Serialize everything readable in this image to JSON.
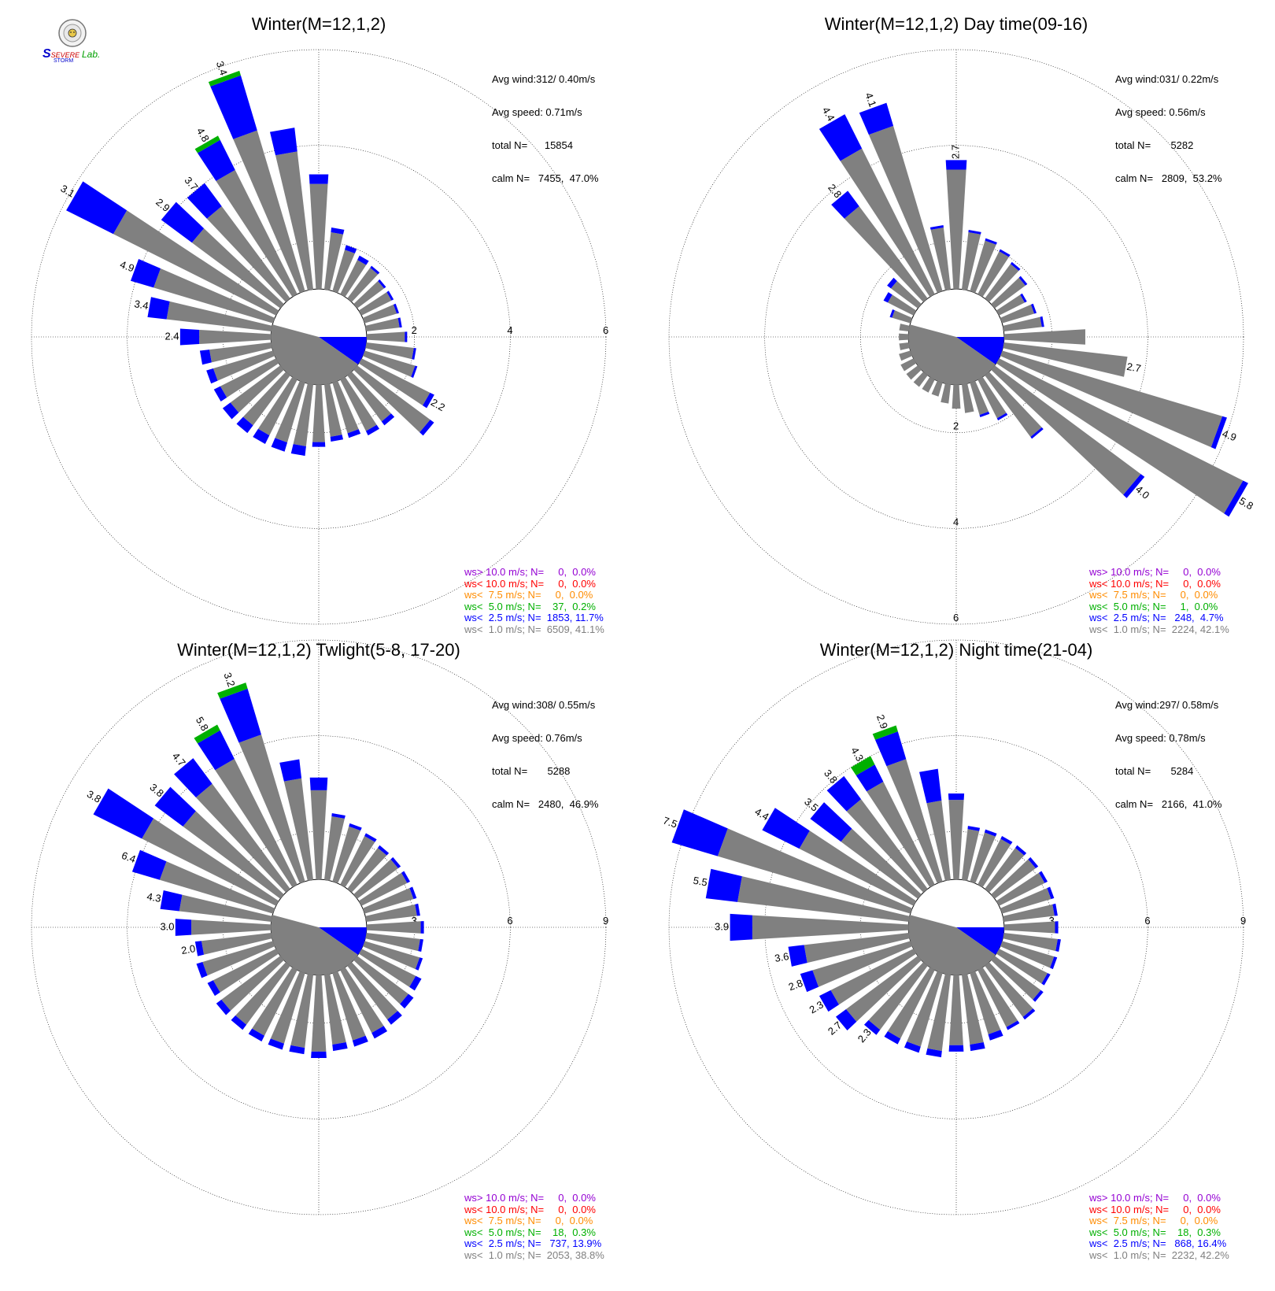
{
  "chart_data": [
    {
      "type": "windrose",
      "title": "Winter(M=12,1,2)",
      "rmax": 6,
      "ring_labels": [
        "2",
        "4",
        "6"
      ],
      "ring_label_direction_deg": 90,
      "calm_radius": 1,
      "stats": {
        "avg_wind": "Avg wind:312/ 0.40m/s",
        "avg_speed": "Avg speed: 0.71m/s",
        "total_n": "total N=      15854",
        "calm_n": "calm N=   7455,  47.0%"
      },
      "legend": [
        {
          "text": "ws> 10.0 m/s; N=     0,  0.0%",
          "color": "#9400D3"
        },
        {
          "text": "ws< 10.0 m/s; N=     0,  0.0%",
          "color": "#FF0000"
        },
        {
          "text": "ws<  7.5 m/s; N=     0,  0.0%",
          "color": "#FF8C00"
        },
        {
          "text": "ws<  5.0 m/s; N=    37,  0.2%",
          "color": "#00B000"
        },
        {
          "text": "ws<  2.5 m/s; N=  1853, 11.7%",
          "color": "#0000FF"
        },
        {
          "text": "ws<  1.0 m/s; N=  6509, 41.1%",
          "color": "#808080"
        }
      ],
      "directions_deg": [
        0,
        10,
        20,
        30,
        40,
        50,
        60,
        70,
        80,
        90,
        100,
        110,
        120,
        130,
        140,
        150,
        160,
        170,
        180,
        190,
        200,
        210,
        220,
        230,
        240,
        250,
        260,
        270,
        280,
        290,
        300,
        310,
        320,
        330,
        340,
        350
      ],
      "gray": [
        2.2,
        1.2,
        0.9,
        0.8,
        0.8,
        0.7,
        0.7,
        0.7,
        0.7,
        0.8,
        1.0,
        1.1,
        1.6,
        1.9,
        1.2,
        1.2,
        1.1,
        1.1,
        1.2,
        1.3,
        1.3,
        1.3,
        1.3,
        1.3,
        1.3,
        1.3,
        1.3,
        1.5,
        2.2,
        2.6,
        3.8,
        2.3,
        2.4,
        2.9,
        3.5,
        2.9
      ],
      "blue": [
        0.2,
        0.1,
        0.1,
        0.1,
        0.05,
        0.05,
        0.05,
        0.05,
        0.05,
        0.05,
        0.05,
        0.05,
        0.1,
        0.1,
        0.1,
        0.1,
        0.1,
        0.1,
        0.1,
        0.2,
        0.2,
        0.2,
        0.2,
        0.2,
        0.15,
        0.15,
        0.2,
        0.4,
        0.4,
        0.5,
        1.1,
        0.8,
        0.6,
        0.7,
        1.2,
        0.5
      ],
      "green": [
        0,
        0,
        0,
        0,
        0,
        0,
        0,
        0,
        0,
        0,
        0,
        0,
        0,
        0,
        0,
        0,
        0,
        0,
        0,
        0,
        0,
        0,
        0,
        0,
        0,
        0,
        0,
        0,
        0,
        0,
        0,
        0,
        0,
        0.1,
        0.1,
        0
      ],
      "labels": [
        "",
        "",
        "",
        "",
        "",
        "",
        "",
        "",
        "",
        "",
        "",
        "",
        "2.2",
        "",
        "",
        "",
        "",
        "",
        "",
        "",
        "",
        "",
        "",
        "",
        "",
        "",
        "",
        "2.4",
        "3.4",
        "4.9",
        "3.1",
        "2.9",
        "3.7",
        "4.8",
        "3.4",
        ""
      ]
    },
    {
      "type": "windrose",
      "title": "Winter(M=12,1,2) Day time(09-16)",
      "rmax": 6,
      "ring_labels": [
        "2",
        "4",
        "6"
      ],
      "ring_label_direction_deg": 180,
      "calm_radius": 1,
      "stats": {
        "avg_wind": "Avg wind:031/ 0.22m/s",
        "avg_speed": "Avg speed: 0.56m/s",
        "total_n": "total N=       5282",
        "calm_n": "calm N=   2809,  53.2%"
      },
      "legend": [
        {
          "text": "ws> 10.0 m/s; N=     0,  0.0%",
          "color": "#9400D3"
        },
        {
          "text": "ws< 10.0 m/s; N=     0,  0.0%",
          "color": "#FF0000"
        },
        {
          "text": "ws<  7.5 m/s; N=     0,  0.0%",
          "color": "#FF8C00"
        },
        {
          "text": "ws<  5.0 m/s; N=     1,  0.0%",
          "color": "#00B000"
        },
        {
          "text": "ws<  2.5 m/s; N=   248,  4.7%",
          "color": "#0000FF"
        },
        {
          "text": "ws<  1.0 m/s; N=  2224, 42.1%",
          "color": "#808080"
        }
      ],
      "directions_deg": [
        0,
        10,
        20,
        30,
        40,
        50,
        60,
        70,
        80,
        90,
        100,
        110,
        120,
        130,
        140,
        150,
        160,
        170,
        180,
        190,
        200,
        210,
        220,
        230,
        240,
        250,
        260,
        270,
        280,
        290,
        300,
        310,
        320,
        330,
        340,
        350
      ],
      "gray": [
        2.5,
        1.2,
        1.1,
        1.0,
        0.9,
        0.8,
        0.6,
        0.7,
        0.8,
        1.7,
        2.6,
        4.8,
        5.7,
        3.8,
        1.6,
        0.9,
        0.7,
        0.6,
        0.5,
        0.4,
        0.3,
        0.3,
        0.3,
        0.3,
        0.3,
        0.25,
        0.2,
        0.2,
        0.2,
        0.4,
        0.6,
        0.7,
        2.4,
        3.4,
        3.6,
        1.3
      ],
      "blue": [
        0.2,
        0.05,
        0.05,
        0.05,
        0.05,
        0.05,
        0.05,
        0.05,
        0.05,
        0,
        0,
        0.1,
        0.12,
        0.1,
        0.05,
        0.05,
        0.05,
        0,
        0,
        0,
        0,
        0,
        0,
        0,
        0,
        0,
        0,
        0,
        0,
        0.05,
        0.1,
        0.1,
        0.4,
        0.8,
        0.5,
        0.05
      ],
      "green": [
        0,
        0,
        0,
        0,
        0,
        0,
        0,
        0,
        0,
        0,
        0,
        0,
        0,
        0,
        0,
        0,
        0,
        0,
        0,
        0,
        0,
        0,
        0,
        0,
        0,
        0,
        0,
        0,
        0,
        0,
        0,
        0,
        0,
        0,
        0,
        0
      ],
      "labels": [
        "2.7",
        "",
        "",
        "",
        "",
        "",
        "",
        "",
        "",
        "",
        "2.7",
        "4.9",
        "5.8",
        "4.0",
        "",
        "",
        "",
        "",
        "",
        "",
        "",
        "",
        "",
        "",
        "",
        "",
        "",
        "",
        "",
        "",
        "",
        "",
        "2.8",
        "4.4",
        "4.1",
        ""
      ]
    },
    {
      "type": "windrose",
      "title": "Winter(M=12,1,2) Twlight(5-8, 17-20)",
      "rmax": 9,
      "ring_labels": [
        "3",
        "6",
        "9"
      ],
      "ring_label_direction_deg": 90,
      "calm_radius": 1.5,
      "stats": {
        "avg_wind": "Avg wind:308/ 0.55m/s",
        "avg_speed": "Avg speed: 0.76m/s",
        "total_n": "total N=       5288",
        "calm_n": "calm N=   2480,  46.9%"
      },
      "legend": [
        {
          "text": "ws> 10.0 m/s; N=     0,  0.0%",
          "color": "#9400D3"
        },
        {
          "text": "ws< 10.0 m/s; N=     0,  0.0%",
          "color": "#FF0000"
        },
        {
          "text": "ws<  7.5 m/s; N=     0,  0.0%",
          "color": "#FF8C00"
        },
        {
          "text": "ws<  5.0 m/s; N=    18,  0.3%",
          "color": "#00B000"
        },
        {
          "text": "ws<  2.5 m/s; N=   737, 13.9%",
          "color": "#0000FF"
        },
        {
          "text": "ws<  1.0 m/s; N=  2053, 38.8%",
          "color": "#808080"
        }
      ],
      "directions_deg": [
        0,
        10,
        20,
        30,
        40,
        50,
        60,
        70,
        80,
        90,
        100,
        110,
        120,
        130,
        140,
        150,
        160,
        170,
        180,
        190,
        200,
        210,
        220,
        230,
        240,
        250,
        260,
        270,
        280,
        290,
        300,
        310,
        320,
        330,
        340,
        350
      ],
      "gray": [
        2.8,
        2.0,
        1.8,
        1.7,
        1.6,
        1.6,
        1.6,
        1.6,
        1.6,
        1.7,
        1.7,
        1.8,
        1.9,
        2.0,
        2.1,
        2.2,
        2.2,
        2.2,
        2.4,
        2.3,
        2.3,
        2.3,
        2.3,
        2.3,
        2.2,
        2.3,
        2.2,
        2.5,
        2.9,
        3.7,
        4.7,
        3.8,
        4.1,
        4.4,
        4.8,
        3.2
      ],
      "blue": [
        0.4,
        0.1,
        0.1,
        0.1,
        0.1,
        0.1,
        0.1,
        0.1,
        0.1,
        0.1,
        0.1,
        0.1,
        0.2,
        0.2,
        0.2,
        0.2,
        0.2,
        0.2,
        0.2,
        0.2,
        0.2,
        0.2,
        0.2,
        0.2,
        0.2,
        0.2,
        0.2,
        0.5,
        0.6,
        0.9,
        1.7,
        1.1,
        1.0,
        1.0,
        1.5,
        0.6
      ],
      "green": [
        0,
        0,
        0,
        0,
        0,
        0,
        0,
        0,
        0,
        0,
        0,
        0,
        0,
        0,
        0,
        0,
        0,
        0,
        0,
        0,
        0,
        0,
        0,
        0,
        0,
        0,
        0,
        0,
        0,
        0,
        0,
        0,
        0,
        0.2,
        0.2,
        0
      ],
      "labels": [
        "",
        "",
        "",
        "",
        "",
        "",
        "",
        "",
        "",
        "",
        "",
        "",
        "",
        "",
        "",
        "",
        "",
        "",
        "",
        "",
        "",
        "",
        "",
        "",
        "",
        "",
        "2.0",
        "3.0",
        "4.3",
        "6.4",
        "3.8",
        "3.8",
        "4.7",
        "5.8",
        "3.2",
        ""
      ]
    },
    {
      "type": "windrose",
      "title": "Winter(M=12,1,2) Night time(21-04)",
      "rmax": 9,
      "ring_labels": [
        "3",
        "6",
        "9"
      ],
      "ring_label_direction_deg": 90,
      "calm_radius": 1.5,
      "stats": {
        "avg_wind": "Avg wind:297/ 0.58m/s",
        "avg_speed": "Avg speed: 0.78m/s",
        "total_n": "total N=       5284",
        "calm_n": "calm N=   2166,  41.0%"
      },
      "legend": [
        {
          "text": "ws> 10.0 m/s; N=     0,  0.0%",
          "color": "#9400D3"
        },
        {
          "text": "ws< 10.0 m/s; N=     0,  0.0%",
          "color": "#FF0000"
        },
        {
          "text": "ws<  7.5 m/s; N=     0,  0.0%",
          "color": "#FF8C00"
        },
        {
          "text": "ws<  5.0 m/s; N=    18,  0.3%",
          "color": "#00B000"
        },
        {
          "text": "ws<  2.5 m/s; N=   868, 16.4%",
          "color": "#0000FF"
        },
        {
          "text": "ws<  1.0 m/s; N=  2232, 42.2%",
          "color": "#808080"
        }
      ],
      "directions_deg": [
        0,
        10,
        20,
        30,
        40,
        50,
        60,
        70,
        80,
        90,
        100,
        110,
        120,
        130,
        140,
        150,
        160,
        170,
        180,
        190,
        200,
        210,
        220,
        230,
        240,
        250,
        260,
        270,
        280,
        290,
        300,
        310,
        320,
        330,
        340,
        350
      ],
      "gray": [
        2.5,
        1.6,
        1.6,
        1.6,
        1.6,
        1.6,
        1.6,
        1.6,
        1.6,
        1.6,
        1.7,
        1.7,
        1.7,
        1.8,
        2.0,
        2.0,
        2.0,
        2.2,
        2.2,
        2.4,
        2.4,
        2.4,
        2.5,
        2.8,
        2.9,
        3.2,
        3.3,
        4.9,
        5.4,
        6.3,
        4.0,
        3.0,
        3.5,
        3.6,
        4.0,
        2.5
      ],
      "blue": [
        0.2,
        0.1,
        0.1,
        0.1,
        0.1,
        0.1,
        0.1,
        0.1,
        0.1,
        0.1,
        0.1,
        0.1,
        0.1,
        0.1,
        0.1,
        0.1,
        0.2,
        0.2,
        0.2,
        0.2,
        0.2,
        0.2,
        0.2,
        0.4,
        0.4,
        0.4,
        0.5,
        0.7,
        1.0,
        1.5,
        1.3,
        1.2,
        0.9,
        0.6,
        0.9,
        1.0
      ],
      "green": [
        0,
        0,
        0,
        0,
        0,
        0,
        0,
        0,
        0,
        0,
        0,
        0,
        0,
        0,
        0,
        0,
        0,
        0,
        0,
        0,
        0,
        0,
        0,
        0,
        0,
        0,
        0,
        0,
        0,
        0,
        0,
        0,
        0,
        0.3,
        0.2,
        0
      ],
      "labels": [
        "",
        "",
        "",
        "",
        "",
        "",
        "",
        "",
        "",
        "",
        "",
        "",
        "",
        "",
        "",
        "",
        "",
        "",
        "",
        "",
        "",
        "",
        "2.3",
        "2.7",
        "2.3",
        "2.8",
        "3.6",
        "3.9",
        "5.5",
        "7.5",
        "4.4",
        "3.5",
        "3.8",
        "4.3",
        "2.9",
        ""
      ]
    }
  ],
  "logo": {
    "text_top": "SEVERE",
    "text_bottom": "STORM",
    "text_lab": "Lab."
  },
  "colors": {
    "gray": "#808080",
    "blue": "#0000FF",
    "green": "#00B000",
    "grid": "#000000"
  }
}
